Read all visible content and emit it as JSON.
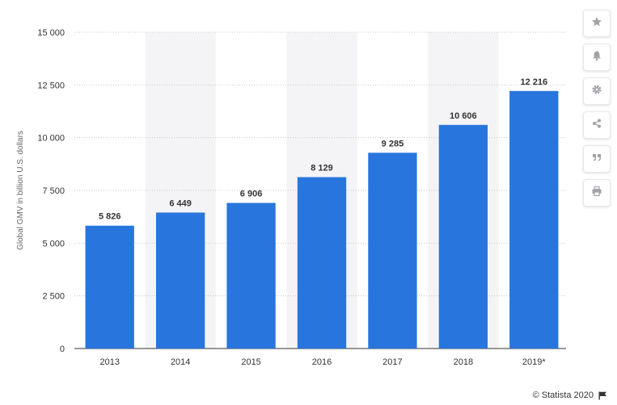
{
  "chart_data": {
    "type": "bar",
    "categories": [
      "2013",
      "2014",
      "2015",
      "2016",
      "2017",
      "2018",
      "2019*"
    ],
    "values": [
      5826,
      6449,
      6906,
      8129,
      9285,
      10606,
      12216
    ],
    "value_labels": [
      "5 826",
      "6 449",
      "6 906",
      "8 129",
      "9 285",
      "10 606",
      "12 216"
    ],
    "ylabel": "Global GMV in billion U.S. dollars",
    "ylim": [
      0,
      15000
    ],
    "yticks": [
      0,
      2500,
      5000,
      7500,
      10000,
      12500,
      15000
    ],
    "ytick_labels": [
      "0",
      "2 500",
      "5 000",
      "7 500",
      "10 000",
      "12 500",
      "15 000"
    ],
    "grid": "horizontal-dotted",
    "bar_color": "#2876dd",
    "band_color": "#f4f4f6"
  },
  "toolbar": {
    "buttons": [
      {
        "name": "favorite-button",
        "icon": "star-icon"
      },
      {
        "name": "notification-button",
        "icon": "bell-icon"
      },
      {
        "name": "settings-button",
        "icon": "gear-icon"
      },
      {
        "name": "share-button",
        "icon": "share-icon"
      },
      {
        "name": "cite-button",
        "icon": "quote-icon"
      },
      {
        "name": "print-button",
        "icon": "print-icon"
      }
    ],
    "icon_color": "#a0a4a8"
  },
  "footer": {
    "copyright": "© Statista 2020"
  }
}
